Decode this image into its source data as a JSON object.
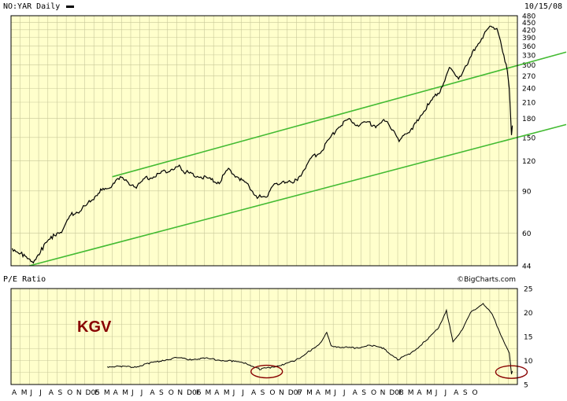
{
  "chart_data": [
    {
      "type": "line",
      "title": "NO:YAR Daily",
      "date": "10/15/08",
      "scale": "log",
      "ylim": [
        44,
        480
      ],
      "y_ticks": [
        480,
        450,
        420,
        390,
        360,
        330,
        300,
        270,
        240,
        210,
        180,
        150,
        120,
        90,
        60,
        44
      ],
      "grid": true,
      "x_ticks": [
        "A",
        "M",
        "J",
        "J",
        "A",
        "S",
        "O",
        "N",
        "D05",
        "F",
        "M",
        "A",
        "M",
        "J",
        "J",
        "A",
        "S",
        "O",
        "N",
        "D06",
        "F",
        "M",
        "A",
        "M",
        "J",
        "J",
        "A",
        "S",
        "O",
        "N",
        "D07",
        "F",
        "M",
        "A",
        "M",
        "J",
        "J",
        "A",
        "S",
        "O",
        "N",
        "D08",
        "F",
        "M",
        "A",
        "M",
        "J",
        "J",
        "A",
        "S",
        "O"
      ],
      "x_range": [
        "2004-04",
        "2008-10"
      ],
      "series": [
        {
          "points": [
            [
              "2004-04-05",
              52
            ],
            [
              "2004-05-10",
              49
            ],
            [
              "2004-06-10",
              45
            ],
            [
              "2004-07-15",
              52
            ],
            [
              "2004-08-20",
              59
            ],
            [
              "2004-09-20",
              62
            ],
            [
              "2004-10-20",
              72
            ],
            [
              "2004-11-20",
              75
            ],
            [
              "2004-12-20",
              81
            ],
            [
              "2005-01-20",
              90
            ],
            [
              "2005-02-20",
              92
            ],
            [
              "2005-03-20",
              103
            ],
            [
              "2005-04-20",
              98
            ],
            [
              "2005-05-20",
              94
            ],
            [
              "2005-06-20",
              101
            ],
            [
              "2005-07-20",
              104
            ],
            [
              "2005-08-20",
              108
            ],
            [
              "2005-09-20",
              112
            ],
            [
              "2005-10-10",
              114
            ],
            [
              "2005-10-25",
              108
            ],
            [
              "2005-11-20",
              106
            ],
            [
              "2005-12-20",
              103
            ],
            [
              "2006-01-20",
              100
            ],
            [
              "2006-02-20",
              98
            ],
            [
              "2006-03-20",
              110
            ],
            [
              "2006-04-20",
              103
            ],
            [
              "2006-05-20",
              96
            ],
            [
              "2006-06-20",
              86
            ],
            [
              "2006-07-10",
              84
            ],
            [
              "2006-07-25",
              86
            ],
            [
              "2006-08-20",
              96
            ],
            [
              "2006-09-20",
              99
            ],
            [
              "2006-10-20",
              96
            ],
            [
              "2006-11-20",
              107
            ],
            [
              "2006-12-20",
              123
            ],
            [
              "2007-01-20",
              130
            ],
            [
              "2007-02-20",
              148
            ],
            [
              "2007-03-20",
              168
            ],
            [
              "2007-04-20",
              177
            ],
            [
              "2007-05-20",
              170
            ],
            [
              "2007-06-20",
              172
            ],
            [
              "2007-07-20",
              168
            ],
            [
              "2007-08-20",
              175
            ],
            [
              "2007-09-20",
              160
            ],
            [
              "2007-10-10",
              144
            ],
            [
              "2007-10-25",
              155
            ],
            [
              "2007-11-20",
              162
            ],
            [
              "2007-12-20",
              190
            ],
            [
              "2008-01-20",
              210
            ],
            [
              "2008-02-20",
              235
            ],
            [
              "2008-03-20",
              288
            ],
            [
              "2008-04-20",
              265
            ],
            [
              "2008-05-20",
              300
            ],
            [
              "2008-06-20",
              365
            ],
            [
              "2008-07-20",
              410
            ],
            [
              "2008-08-05",
              440
            ],
            [
              "2008-08-25",
              420
            ],
            [
              "2008-09-10",
              360
            ],
            [
              "2008-09-25",
              300
            ],
            [
              "2008-10-05",
              240
            ],
            [
              "2008-10-12",
              150
            ],
            [
              "2008-10-15",
              168
            ]
          ]
        }
      ],
      "trendlines": [
        {
          "from": [
            "2005-03-01",
            103
          ],
          "to": [
            "2008-10-31",
            298
          ]
        },
        {
          "from": [
            "2004-06-01",
            44
          ],
          "to": [
            "2008-10-31",
            150
          ]
        }
      ]
    },
    {
      "type": "line",
      "title": "P/E Ratio",
      "source": "©BigCharts.com",
      "annotation": "KGV",
      "ylim": [
        5,
        25
      ],
      "y_ticks": [
        25,
        20,
        15,
        10,
        5
      ],
      "grid": true,
      "x_ticks": [
        "A",
        "M",
        "J",
        "J",
        "A",
        "S",
        "O",
        "N",
        "D05",
        "F",
        "M",
        "A",
        "M",
        "J",
        "J",
        "A",
        "S",
        "O",
        "N",
        "D06",
        "F",
        "M",
        "A",
        "M",
        "J",
        "J",
        "A",
        "S",
        "O",
        "N",
        "D07",
        "F",
        "M",
        "A",
        "M",
        "J",
        "J",
        "A",
        "S",
        "O",
        "N",
        "D08",
        "F",
        "M",
        "A",
        "M",
        "J",
        "J",
        "A",
        "S",
        "O"
      ],
      "x_range": [
        "2004-04",
        "2008-10"
      ],
      "series": [
        {
          "points": [
            [
              "2005-02-15",
              8.7
            ],
            [
              "2005-04-01",
              8.8
            ],
            [
              "2005-05-15",
              8.6
            ],
            [
              "2005-07-01",
              9.4
            ],
            [
              "2005-08-15",
              10.0
            ],
            [
              "2005-10-01",
              10.6
            ],
            [
              "2005-11-15",
              10.2
            ],
            [
              "2006-01-01",
              10.5
            ],
            [
              "2006-02-15",
              10.1
            ],
            [
              "2006-04-01",
              9.9
            ],
            [
              "2006-05-15",
              9.5
            ],
            [
              "2006-07-01",
              8.2
            ],
            [
              "2006-08-10",
              8.6
            ],
            [
              "2006-09-20",
              9.2
            ],
            [
              "2006-11-01",
              10.1
            ],
            [
              "2006-12-15",
              12.0
            ],
            [
              "2007-01-15",
              13.2
            ],
            [
              "2007-02-10",
              16.0
            ],
            [
              "2007-02-25",
              13.0
            ],
            [
              "2007-04-01",
              12.8
            ],
            [
              "2007-05-15",
              12.6
            ],
            [
              "2007-07-01",
              13.2
            ],
            [
              "2007-08-15",
              12.5
            ],
            [
              "2007-10-01",
              10.2
            ],
            [
              "2007-11-15",
              11.5
            ],
            [
              "2008-01-01",
              14.0
            ],
            [
              "2008-02-15",
              16.8
            ],
            [
              "2008-03-10",
              20.5
            ],
            [
              "2008-04-01",
              13.8
            ],
            [
              "2008-05-01",
              16.5
            ],
            [
              "2008-06-01",
              20.2
            ],
            [
              "2008-07-10",
              21.9
            ],
            [
              "2008-08-10",
              19.5
            ],
            [
              "2008-09-10",
              15.0
            ],
            [
              "2008-10-05",
              11.5
            ],
            [
              "2008-10-12",
              7.2
            ],
            [
              "2008-10-15",
              7.8
            ]
          ]
        }
      ],
      "highlight_circles": [
        {
          "center": [
            "2006-07-25",
            7.7
          ]
        },
        {
          "center": [
            "2008-10-12",
            7.6
          ]
        }
      ]
    }
  ],
  "colors": {
    "plot_bg": "#ffffcc",
    "grid": "#c8c89a",
    "price_line": "#000000",
    "trend_line": "#44bb33",
    "circle": "#880000",
    "annotation": "#880000",
    "legend_swatch": "#000000"
  }
}
